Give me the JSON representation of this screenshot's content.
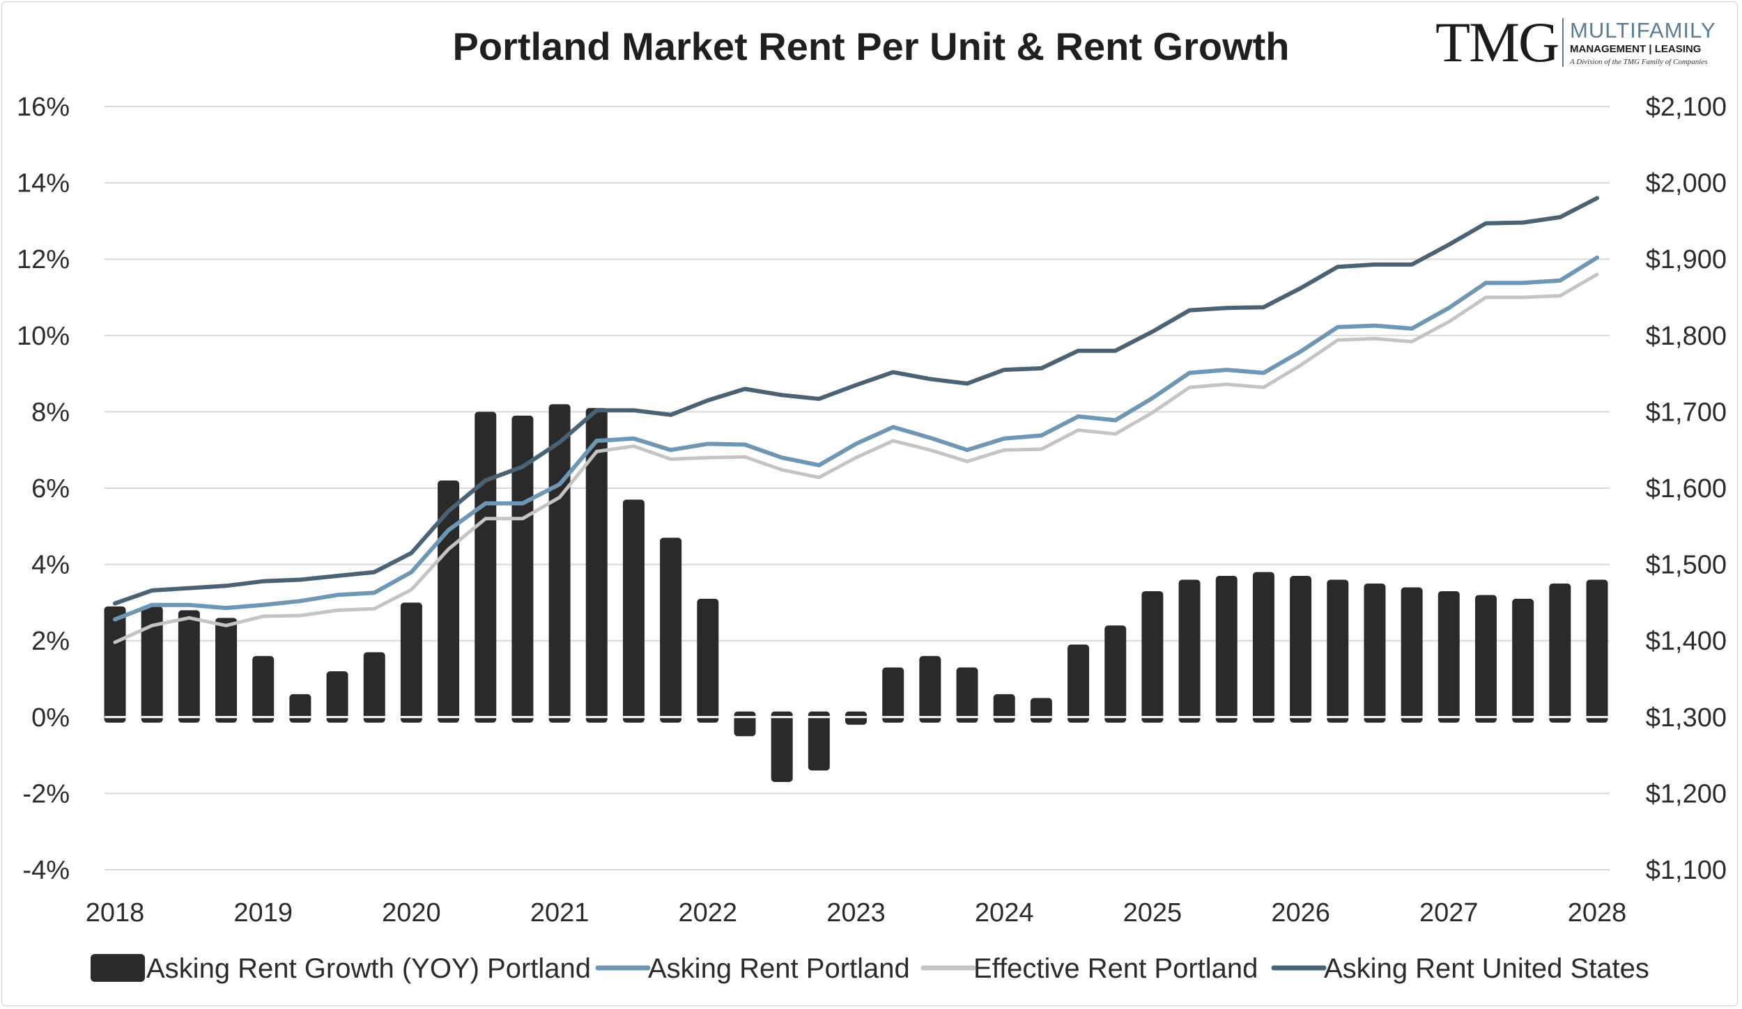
{
  "logo": {
    "brand": "TMG",
    "line1": "MULTIFAMILY",
    "line2": "MANAGEMENT | LEASING",
    "line3": "A Division of the TMG Family of Companies"
  },
  "colors": {
    "bars": "#2a2a2a",
    "asking_portland": "#6f97b3",
    "effective_portland": "#c4c4c4",
    "asking_us": "#4a6274",
    "grid": "#d9d9d9"
  },
  "chart_data": {
    "type": "bar+line",
    "title": "Portland Market Rent Per Unit & Rent Growth",
    "x_tick_labels": [
      "2018",
      "2019",
      "2020",
      "2021",
      "2022",
      "2023",
      "2024",
      "2025",
      "2026",
      "2027",
      "2028"
    ],
    "x_range": [
      2018,
      2028
    ],
    "y_left": {
      "range": [
        -4,
        16
      ],
      "step": 2,
      "tick_labels": [
        "-4%",
        "-2%",
        "0%",
        "2%",
        "4%",
        "6%",
        "8%",
        "10%",
        "12%",
        "14%",
        "16%"
      ]
    },
    "y_right": {
      "range": [
        1100,
        2100
      ],
      "step": 100,
      "tick_labels": [
        "$1,100",
        "$1,200",
        "$1,300",
        "$1,400",
        "$1,500",
        "$1,600",
        "$1,700",
        "$1,800",
        "$1,900",
        "$2,000",
        "$2,100"
      ]
    },
    "quarters": [
      "2018 Q1",
      "2018 Q2",
      "2018 Q3",
      "2018 Q4",
      "2019 Q1",
      "2019 Q2",
      "2019 Q3",
      "2019 Q4",
      "2020 Q1",
      "2020 Q2",
      "2020 Q3",
      "2020 Q4",
      "2021 Q1",
      "2021 Q2",
      "2021 Q3",
      "2021 Q4",
      "2022 Q1",
      "2022 Q2",
      "2022 Q3",
      "2022 Q4",
      "2023 Q1",
      "2023 Q2",
      "2023 Q3",
      "2023 Q4",
      "2024 Q1",
      "2024 Q2",
      "2024 Q3",
      "2024 Q4",
      "2025 Q1",
      "2025 Q2",
      "2025 Q3",
      "2025 Q4",
      "2026 Q1",
      "2026 Q2",
      "2026 Q3",
      "2026 Q4",
      "2027 Q1",
      "2027 Q2",
      "2027 Q3",
      "2027 Q4",
      "2028 Q1"
    ],
    "series": [
      {
        "name": "Asking Rent Growth (YOY) Portland",
        "kind": "bar",
        "axis": "left",
        "unit": "%",
        "values": [
          2.9,
          2.9,
          2.8,
          2.6,
          1.6,
          0.6,
          1.2,
          1.7,
          3.0,
          6.2,
          8.0,
          7.9,
          8.2,
          8.1,
          5.7,
          4.7,
          3.1,
          -0.5,
          -1.7,
          -1.4,
          -0.2,
          1.3,
          1.6,
          1.3,
          0.6,
          0.5,
          1.9,
          2.4,
          3.3,
          3.6,
          3.7,
          3.8,
          3.7,
          3.6,
          3.5,
          3.4,
          3.3,
          3.2,
          3.1,
          3.5,
          3.6
        ]
      },
      {
        "name": "Asking Rent Portland",
        "kind": "line",
        "axis": "right",
        "unit": "$",
        "values": [
          1428,
          1447,
          1447,
          1443,
          1447,
          1452,
          1460,
          1463,
          1490,
          1545,
          1580,
          1580,
          1605,
          1662,
          1665,
          1650,
          1658,
          1657,
          1640,
          1630,
          1658,
          1680,
          1666,
          1650,
          1665,
          1669,
          1694,
          1689,
          1718,
          1751,
          1755,
          1751,
          1779,
          1811,
          1813,
          1809,
          1836,
          1869,
          1869,
          1872,
          1902
        ]
      },
      {
        "name": "Effective Rent Portland",
        "kind": "line",
        "axis": "right",
        "unit": "$",
        "values": [
          1398,
          1420,
          1430,
          1420,
          1432,
          1433,
          1440,
          1442,
          1467,
          1520,
          1560,
          1560,
          1588,
          1648,
          1655,
          1638,
          1640,
          1641,
          1624,
          1614,
          1640,
          1662,
          1650,
          1635,
          1650,
          1651,
          1676,
          1671,
          1699,
          1732,
          1736,
          1732,
          1761,
          1794,
          1796,
          1792,
          1818,
          1850,
          1850,
          1852,
          1880
        ]
      },
      {
        "name": "Asking Rent United States",
        "kind": "line",
        "axis": "right",
        "unit": "$",
        "values": [
          1449,
          1466,
          1469,
          1472,
          1478,
          1480,
          1485,
          1490,
          1515,
          1570,
          1610,
          1628,
          1660,
          1702,
          1702,
          1696,
          1715,
          1730,
          1722,
          1717,
          1735,
          1752,
          1743,
          1737,
          1755,
          1757,
          1780,
          1780,
          1805,
          1833,
          1836,
          1837,
          1862,
          1890,
          1893,
          1893,
          1919,
          1947,
          1948,
          1955,
          1980
        ]
      }
    ],
    "legend": {
      "position": "bottom",
      "entries": [
        "Asking Rent Growth (YOY) Portland",
        "Asking Rent Portland",
        "Effective Rent Portland",
        "Asking Rent United States"
      ]
    },
    "grid": true
  }
}
